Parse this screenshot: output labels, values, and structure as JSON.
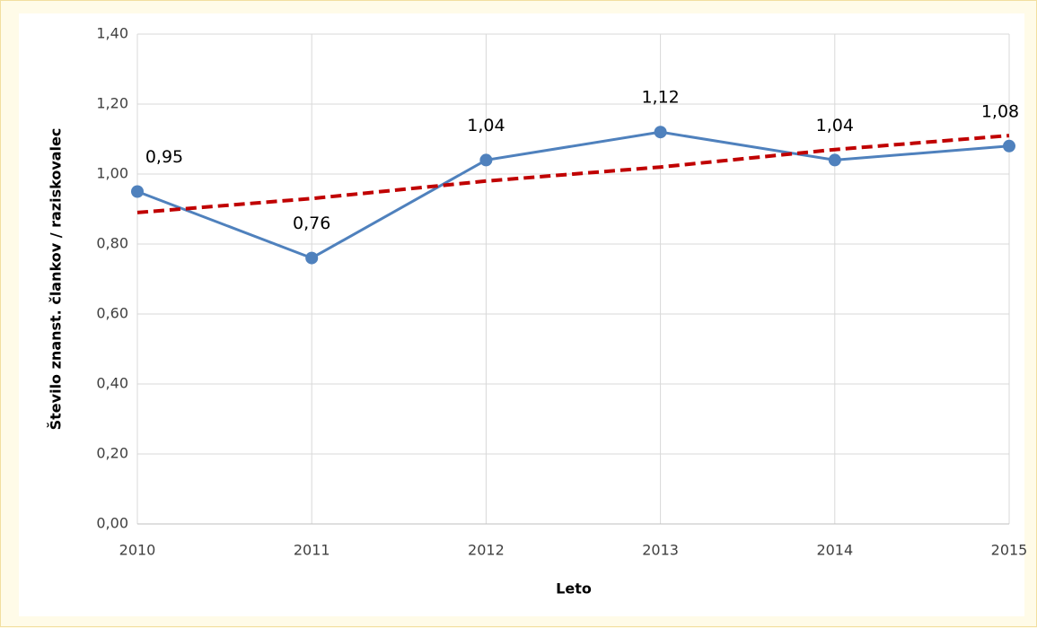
{
  "chart_data": {
    "type": "line",
    "x_label": "Leto",
    "y_label": "Število znanst. člankov / raziskovalec",
    "categories": [
      "2010",
      "2011",
      "2012",
      "2013",
      "2014",
      "2015"
    ],
    "series": [
      {
        "color": "#4f81bd",
        "values": [
          0.95,
          0.76,
          1.04,
          1.12,
          1.04,
          1.08
        ],
        "value_labels": [
          "0,95",
          "0,76",
          "1,04",
          "1,12",
          "1,04",
          "1,08"
        ]
      }
    ],
    "trendline": {
      "color": "#c00000",
      "values": [
        0.89,
        0.93,
        0.98,
        1.02,
        1.07,
        1.11
      ]
    },
    "ylim": [
      0,
      1.4
    ],
    "yticks": [
      {
        "value": 0,
        "label": "0,00"
      },
      {
        "value": 0.2,
        "label": "0,20"
      },
      {
        "value": 0.4,
        "label": "0,40"
      },
      {
        "value": 0.6,
        "label": "0,60"
      },
      {
        "value": 0.8,
        "label": "0,80"
      },
      {
        "value": 1.0,
        "label": "1,00"
      },
      {
        "value": 1.2,
        "label": "1,20"
      },
      {
        "value": 1.4,
        "label": "1,40"
      }
    ],
    "grid": true
  }
}
